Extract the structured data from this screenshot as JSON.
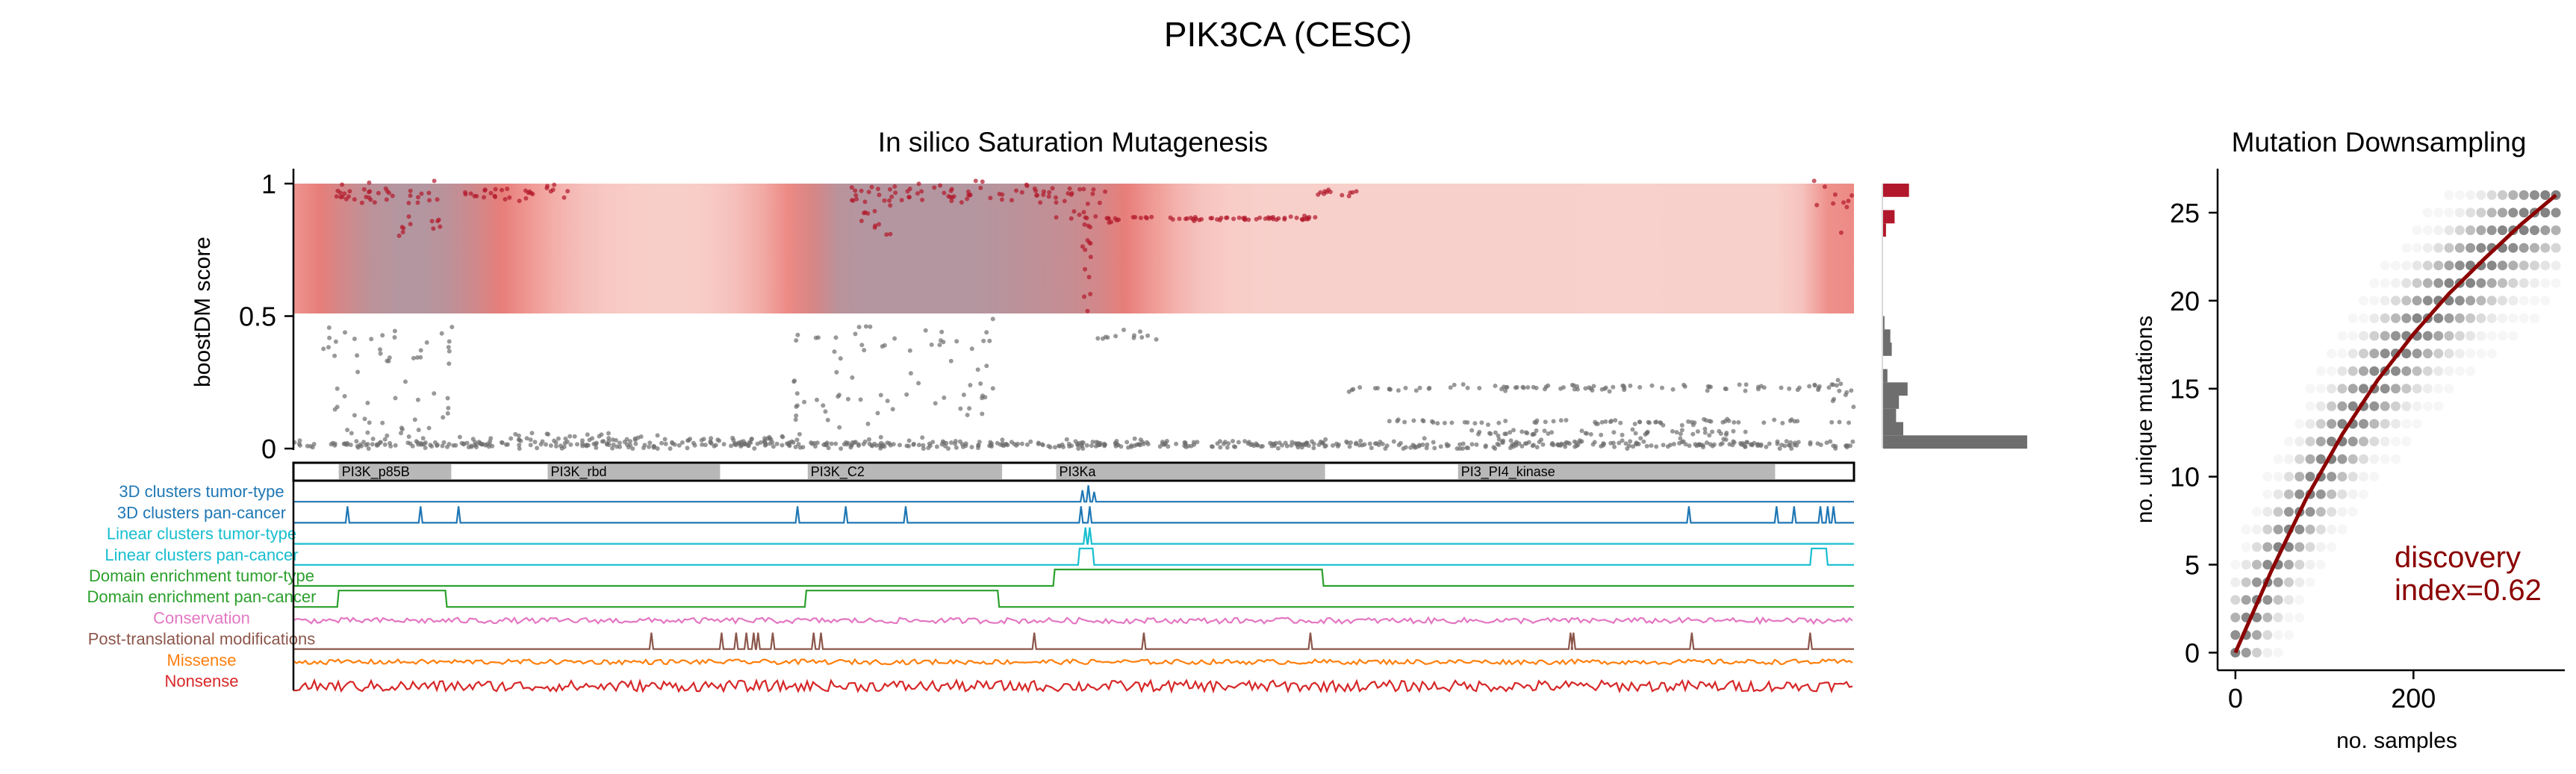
{
  "figure": {
    "suptitle": "PIK3CA (CESC)"
  },
  "colors": {
    "driver": "#b2182b",
    "passenger": "#6e6e6e",
    "fit": "#8b0000",
    "domain_fill": "#b8b8b8",
    "track_colors": [
      "#1f77b4",
      "#1f77b4",
      "#17becf",
      "#17becf",
      "#2ca02c",
      "#2ca02c",
      "#e377c2",
      "#8c564b",
      "#ff7f0e",
      "#d62728"
    ]
  },
  "chart_data": [
    {
      "type": "scatter",
      "title": "In silico Saturation Mutagenesis",
      "ylabel": "boostDM score",
      "xlabel": "",
      "ylim": [
        0,
        1.05
      ],
      "yticks": [
        "0",
        "0.5",
        "1"
      ],
      "ytick_values": [
        0,
        0.5,
        1
      ],
      "protein_length": 1068,
      "driver_threshold": 0.5,
      "domains": [
        {
          "name": "PI3K_p85B",
          "start": 31,
          "end": 108
        },
        {
          "name": "PI3K_rbd",
          "start": 174,
          "end": 292
        },
        {
          "name": "PI3K_C2",
          "start": 352,
          "end": 485
        },
        {
          "name": "PI3Ka",
          "start": 522,
          "end": 706
        },
        {
          "name": "PI3_PI4_kinase",
          "start": 797,
          "end": 1014
        }
      ],
      "density_peaks": [
        {
          "center": 80,
          "width": 55,
          "weight": 0.85
        },
        {
          "center": 400,
          "width": 45,
          "weight": 0.9
        },
        {
          "center": 470,
          "width": 40,
          "weight": 0.45
        },
        {
          "center": 540,
          "width": 40,
          "weight": 0.55
        },
        {
          "center": 1060,
          "width": 15,
          "weight": 0.4
        }
      ],
      "driver_clusters": [
        {
          "start": 28,
          "end": 100,
          "y": 0.96,
          "n": 35,
          "spread": 0.02
        },
        {
          "start": 70,
          "end": 105,
          "y": 0.87,
          "n": 12,
          "spread": 0.05
        },
        {
          "start": 115,
          "end": 190,
          "y": 0.97,
          "n": 30,
          "spread": 0.015
        },
        {
          "start": 380,
          "end": 470,
          "y": 0.96,
          "n": 40,
          "spread": 0.02
        },
        {
          "start": 385,
          "end": 410,
          "y": 0.88,
          "n": 15,
          "spread": 0.05
        },
        {
          "start": 470,
          "end": 560,
          "y": 0.96,
          "n": 35,
          "spread": 0.02
        },
        {
          "start": 540,
          "end": 546,
          "y": 0.75,
          "n": 15,
          "spread": 0.15
        },
        {
          "start": 555,
          "end": 700,
          "y": 0.87,
          "n": 60,
          "spread": 0.005
        },
        {
          "start": 520,
          "end": 560,
          "y": 0.87,
          "n": 10,
          "spread": 0.01
        },
        {
          "start": 700,
          "end": 730,
          "y": 0.97,
          "n": 12,
          "spread": 0.01
        },
        {
          "start": 1040,
          "end": 1068,
          "y": 0.95,
          "n": 10,
          "spread": 0.05
        }
      ],
      "passenger_clusters": [
        {
          "start": 0,
          "end": 1068,
          "y": 0.015,
          "n": 650,
          "spread": 0.008
        },
        {
          "start": 20,
          "end": 110,
          "y": 0.38,
          "n": 30,
          "spread": 0.04
        },
        {
          "start": 20,
          "end": 110,
          "y": 0.12,
          "n": 30,
          "spread": 0.06
        },
        {
          "start": 110,
          "end": 340,
          "y": 0.04,
          "n": 60,
          "spread": 0.01
        },
        {
          "start": 340,
          "end": 480,
          "y": 0.4,
          "n": 30,
          "spread": 0.04
        },
        {
          "start": 340,
          "end": 480,
          "y": 0.15,
          "n": 45,
          "spread": 0.07
        },
        {
          "start": 550,
          "end": 600,
          "y": 0.42,
          "n": 12,
          "spread": 0.01
        },
        {
          "start": 720,
          "end": 1068,
          "y": 0.23,
          "n": 90,
          "spread": 0.006
        },
        {
          "start": 750,
          "end": 1068,
          "y": 0.1,
          "n": 70,
          "spread": 0.005
        },
        {
          "start": 800,
          "end": 1000,
          "y": 0.06,
          "n": 50,
          "spread": 0.006
        },
        {
          "start": 1040,
          "end": 1068,
          "y": 0.2,
          "n": 10,
          "spread": 0.05
        }
      ],
      "histogram": [
        {
          "score": 0.025,
          "count": 100
        },
        {
          "score": 0.075,
          "count": 14
        },
        {
          "score": 0.125,
          "count": 9
        },
        {
          "score": 0.175,
          "count": 11
        },
        {
          "score": 0.225,
          "count": 17
        },
        {
          "score": 0.275,
          "count": 3
        },
        {
          "score": 0.325,
          "count": 0
        },
        {
          "score": 0.375,
          "count": 6
        },
        {
          "score": 0.425,
          "count": 5
        },
        {
          "score": 0.475,
          "count": 1
        },
        {
          "score": 0.825,
          "count": 2
        },
        {
          "score": 0.875,
          "count": 8
        },
        {
          "score": 0.975,
          "count": 18
        }
      ]
    },
    {
      "type": "table",
      "title": "",
      "tracks": [
        {
          "label": "3D clusters tumor-type",
          "kind": "spikes",
          "spikes": [
            {
              "pos": 540,
              "h": 0.7
            },
            {
              "pos": 544,
              "h": 1.0
            },
            {
              "pos": 548,
              "h": 0.6
            }
          ]
        },
        {
          "label": "3D clusters pan-cancer",
          "kind": "spikes",
          "spikes": [
            {
              "pos": 37,
              "h": 1
            },
            {
              "pos": 87,
              "h": 1
            },
            {
              "pos": 113,
              "h": 1
            },
            {
              "pos": 345,
              "h": 1
            },
            {
              "pos": 378,
              "h": 1
            },
            {
              "pos": 419,
              "h": 1
            },
            {
              "pos": 539,
              "h": 1
            },
            {
              "pos": 545,
              "h": 1
            },
            {
              "pos": 955,
              "h": 1
            },
            {
              "pos": 1015,
              "h": 1
            },
            {
              "pos": 1027,
              "h": 1
            },
            {
              "pos": 1045,
              "h": 1
            },
            {
              "pos": 1050,
              "h": 1
            },
            {
              "pos": 1054,
              "h": 1
            }
          ]
        },
        {
          "label": "Linear clusters tumor-type",
          "kind": "spikes",
          "spikes": [
            {
              "pos": 542,
              "h": 1
            },
            {
              "pos": 545,
              "h": 1
            }
          ]
        },
        {
          "label": "Linear clusters pan-cancer",
          "kind": "plateaus",
          "plateaus": [
            {
              "start": 537,
              "end": 548,
              "h": 1
            },
            {
              "start": 1038,
              "end": 1050,
              "h": 1
            }
          ]
        },
        {
          "label": "Domain enrichment tumor-type",
          "kind": "plateaus",
          "plateaus": [
            {
              "start": 520,
              "end": 705,
              "h": 1
            }
          ]
        },
        {
          "label": "Domain enrichment pan-cancer",
          "kind": "plateaus",
          "plateaus": [
            {
              "start": 30,
              "end": 105,
              "h": 1
            },
            {
              "start": 350,
              "end": 483,
              "h": 1
            }
          ]
        },
        {
          "label": "Conservation",
          "kind": "noise",
          "base": 0.45,
          "amp": 0.35
        },
        {
          "label": "Post-translational modifications",
          "kind": "spikes",
          "spikes": [
            {
              "pos": 245,
              "h": 1
            },
            {
              "pos": 293,
              "h": 1
            },
            {
              "pos": 303,
              "h": 1
            },
            {
              "pos": 310,
              "h": 1
            },
            {
              "pos": 315,
              "h": 1
            },
            {
              "pos": 318,
              "h": 1
            },
            {
              "pos": 328,
              "h": 1
            },
            {
              "pos": 356,
              "h": 1
            },
            {
              "pos": 361,
              "h": 1
            },
            {
              "pos": 507,
              "h": 1
            },
            {
              "pos": 582,
              "h": 1
            },
            {
              "pos": 696,
              "h": 1
            },
            {
              "pos": 874,
              "h": 1
            },
            {
              "pos": 876,
              "h": 1
            },
            {
              "pos": 957,
              "h": 1
            },
            {
              "pos": 1038,
              "h": 1
            }
          ]
        },
        {
          "label": "Missense",
          "kind": "noise",
          "base": 0.5,
          "amp": 0.3
        },
        {
          "label": "Nonsense",
          "kind": "noise",
          "base": 0.3,
          "amp": 0.7
        }
      ]
    },
    {
      "type": "scatter",
      "title": "Mutation Downsampling",
      "xlabel": "no. samples",
      "ylabel": "no. unique mutations",
      "xlim": [
        -20,
        370
      ],
      "ylim": [
        -1,
        27.5
      ],
      "xticks": [
        "0",
        "200"
      ],
      "xtick_values": [
        0,
        200
      ],
      "yticks": [
        "0",
        "5",
        "10",
        "15",
        "20",
        "25"
      ],
      "ytick_values": [
        0,
        5,
        10,
        15,
        20,
        25
      ],
      "fit_points": [
        [
          0,
          0
        ],
        [
          40,
          4.6
        ],
        [
          80,
          8.8
        ],
        [
          120,
          12.4
        ],
        [
          160,
          15.5
        ],
        [
          200,
          18.1
        ],
        [
          240,
          20.4
        ],
        [
          280,
          22.4
        ],
        [
          320,
          24.3
        ],
        [
          360,
          26.0
        ]
      ],
      "total_samples": 360,
      "max_mutations": 26,
      "annotation": "discovery\nindex=0.62",
      "annotation_value": 0.62
    }
  ]
}
